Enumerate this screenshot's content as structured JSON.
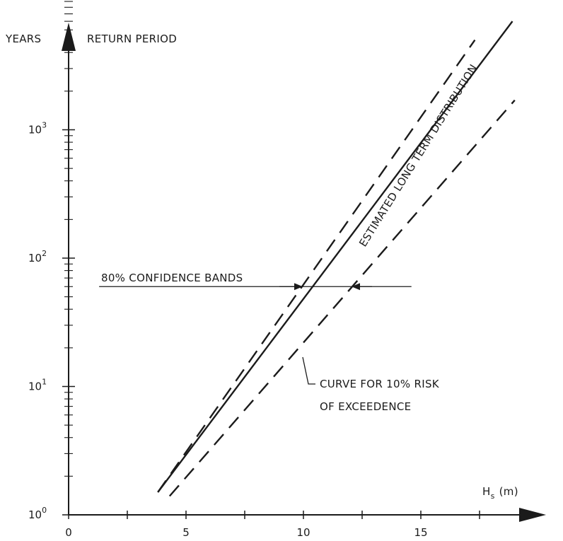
{
  "chart_data": {
    "type": "line",
    "title": "",
    "xlabel": "H",
    "xlabel_subscript": "s",
    "xlabel_unit": "(m)",
    "ylabel_left": "YEARS",
    "ylabel_right": "RETURN PERIOD",
    "xscale": "linear",
    "yscale": "log",
    "xlim": [
      0,
      19
    ],
    "ylim": [
      1,
      10000
    ],
    "x_ticks": [
      0,
      5,
      10,
      15
    ],
    "y_ticks": [
      {
        "base": "10",
        "exp": "0",
        "value": 1
      },
      {
        "base": "10",
        "exp": "1",
        "value": 10
      },
      {
        "base": "10",
        "exp": "2",
        "value": 100
      },
      {
        "base": "10",
        "exp": "3",
        "value": 1000
      }
    ],
    "grid": false,
    "series": [
      {
        "style": "solid",
        "x": [
          3.8,
          18.9
        ],
        "y": [
          1.5,
          7000
        ]
      },
      {
        "style": "dashed",
        "x": [
          3.8,
          17.3
        ],
        "y": [
          1.5,
          5000
        ]
      },
      {
        "style": "dashed",
        "x": [
          4.3,
          19.0
        ],
        "y": [
          1.4,
          1700
        ]
      }
    ],
    "annotations": {
      "estimated": "ESTIMATED LONG TERM DISTRIBUTION",
      "confidence": "80% CONFIDENCE BANDS",
      "risk_line1": "CURVE FOR 10% RISK",
      "risk_line2": "OF EXCEEDENCE"
    },
    "confidence_level_years": 60,
    "confidence_span_x": [
      1.3,
      14.6
    ]
  },
  "colors": {
    "ink": "#1b1b1b",
    "background": "#ffffff"
  }
}
